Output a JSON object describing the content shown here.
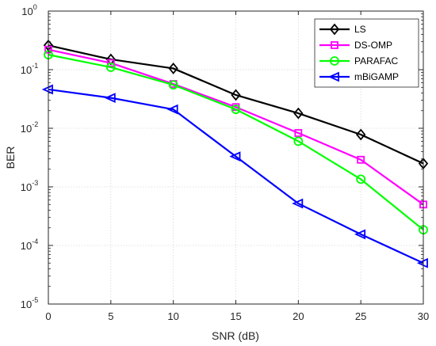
{
  "chart_data": {
    "type": "line",
    "title": "",
    "xlabel": "SNR (dB)",
    "ylabel": "BER",
    "x": [
      0,
      5,
      10,
      15,
      20,
      25,
      30
    ],
    "xlim": [
      0,
      30
    ],
    "ylim": [
      1e-05,
      1
    ],
    "yscale": "log",
    "xticks": [
      "0",
      "5",
      "10",
      "15",
      "20",
      "25",
      "30"
    ],
    "yticks": [
      {
        "base": "10",
        "exp": "0"
      },
      {
        "base": "10",
        "exp": "-1"
      },
      {
        "base": "10",
        "exp": "-2"
      },
      {
        "base": "10",
        "exp": "-3"
      },
      {
        "base": "10",
        "exp": "-4"
      },
      {
        "base": "10",
        "exp": "-5"
      }
    ],
    "grid": true,
    "legend_position": "top-right",
    "series": [
      {
        "name": "LS",
        "color": "#000000",
        "marker": "diamond",
        "values": [
          0.26,
          0.15,
          0.105,
          0.037,
          0.018,
          0.0078,
          0.0025
        ]
      },
      {
        "name": "DS-OMP",
        "color": "#ff00ff",
        "marker": "square",
        "values": [
          0.22,
          0.13,
          0.057,
          0.023,
          0.0083,
          0.0029,
          0.0005
        ]
      },
      {
        "name": "PARAFAC",
        "color": "#00ff00",
        "marker": "circle",
        "values": [
          0.18,
          0.11,
          0.055,
          0.021,
          0.006,
          0.00135,
          0.000185
        ]
      },
      {
        "name": "mBiGAMP",
        "color": "#0000ff",
        "marker": "triangle-left",
        "values": [
          0.046,
          0.033,
          0.021,
          0.0033,
          0.00052,
          0.000155,
          5e-05
        ]
      }
    ]
  }
}
